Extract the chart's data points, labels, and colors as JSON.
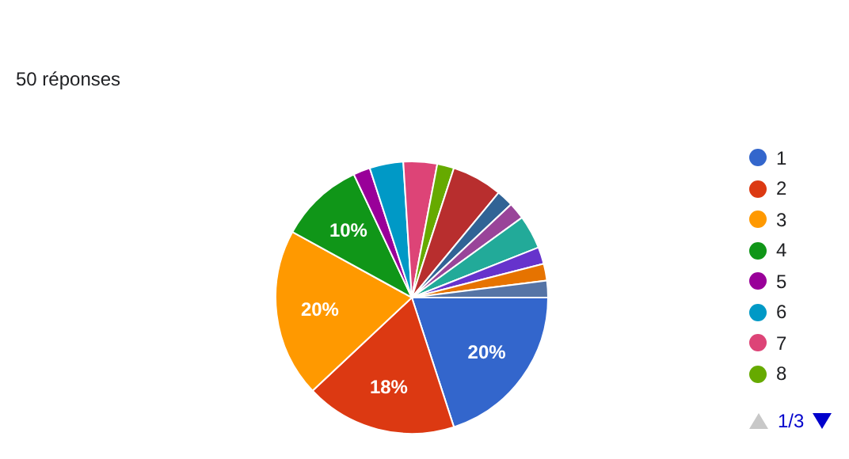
{
  "chart_data": {
    "type": "pie",
    "subtitle": "50 réponses",
    "categories": [
      "1",
      "2",
      "3",
      "4",
      "5",
      "6",
      "7",
      "8",
      null,
      null,
      null,
      null,
      null,
      null,
      null
    ],
    "values": [
      20,
      18,
      20,
      10,
      2,
      4,
      4,
      2,
      6,
      2,
      2,
      4,
      2,
      2,
      2
    ],
    "colors": [
      "#3366cc",
      "#dc3912",
      "#ff9900",
      "#109618",
      "#990099",
      "#0099c6",
      "#dd4477",
      "#66aa00",
      "#b82e2e",
      "#316395",
      "#994499",
      "#22aa99",
      "#6633cc",
      "#e67300",
      "#5574a6"
    ],
    "value_labels": [
      "20%",
      "18%",
      "20%",
      "10%",
      null,
      null,
      null,
      null,
      null,
      null,
      null,
      null,
      null,
      null,
      null
    ],
    "legend": "right",
    "annotations": [
      "1/3"
    ]
  }
}
